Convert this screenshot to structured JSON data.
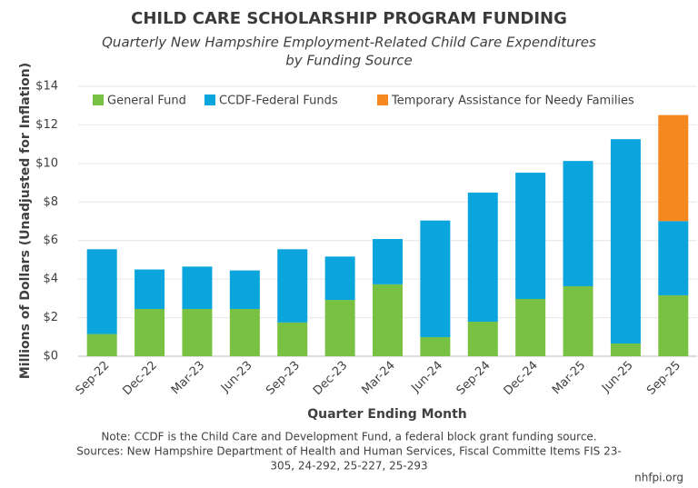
{
  "chart_data": {
    "type": "stacked-bar",
    "title": "CHILD CARE SCHOLARSHIP PROGRAM FUNDING",
    "subtitle": [
      "Quarterly New Hampshire Employment-Related Child Care Expenditures",
      "by Funding Source"
    ],
    "ylabel": "Millions of Dollars (Unadjusted for Inflation)",
    "xlabel": "Quarter Ending Month",
    "categories": [
      "Sep-22",
      "Dec-22",
      "Mar-23",
      "Jun-23",
      "Sep-23",
      "Dec-23",
      "Mar-24",
      "Jun-24",
      "Sep-24",
      "Dec-24",
      "Mar-25",
      "Jun-25",
      "Sep-25"
    ],
    "series": [
      {
        "name": "General Fund",
        "color": "#79c142",
        "values": [
          1.15,
          2.45,
          2.45,
          2.45,
          1.75,
          2.92,
          3.73,
          0.99,
          1.79,
          2.97,
          3.63,
          0.66,
          3.16
        ]
      },
      {
        "name": "CCDF-Federal Funds",
        "color": "#0aa5dd",
        "values": [
          4.4,
          2.05,
          2.2,
          2.0,
          3.8,
          2.25,
          2.35,
          6.05,
          6.7,
          6.55,
          6.5,
          10.6,
          3.85
        ]
      },
      {
        "name": "Temporary Assistance for Needy Families",
        "color": "#f7881f",
        "values": [
          0,
          0,
          0,
          0,
          0,
          0,
          0,
          0,
          0,
          0,
          0,
          0,
          5.5
        ]
      }
    ],
    "ylim": [
      0,
      14
    ],
    "yticks": [
      {
        "value": 0,
        "label": "$0"
      },
      {
        "value": 2,
        "label": "$2"
      },
      {
        "value": 4,
        "label": "$4"
      },
      {
        "value": 6,
        "label": "$6"
      },
      {
        "value": 8,
        "label": "$8"
      },
      {
        "value": 10,
        "label": "$10"
      },
      {
        "value": 12,
        "label": "$12"
      },
      {
        "value": 14,
        "label": "$14"
      }
    ],
    "grid": true,
    "notes": [
      "Note: CCDF is the Child Care and Development Fund, a federal block grant funding source.",
      "Sources: New Hampshire Department of Health and Human Services, Fiscal Committe Items FIS 23-",
      "305, 24-292, 25-227, 25-293"
    ],
    "source": "nhfpi.org"
  }
}
